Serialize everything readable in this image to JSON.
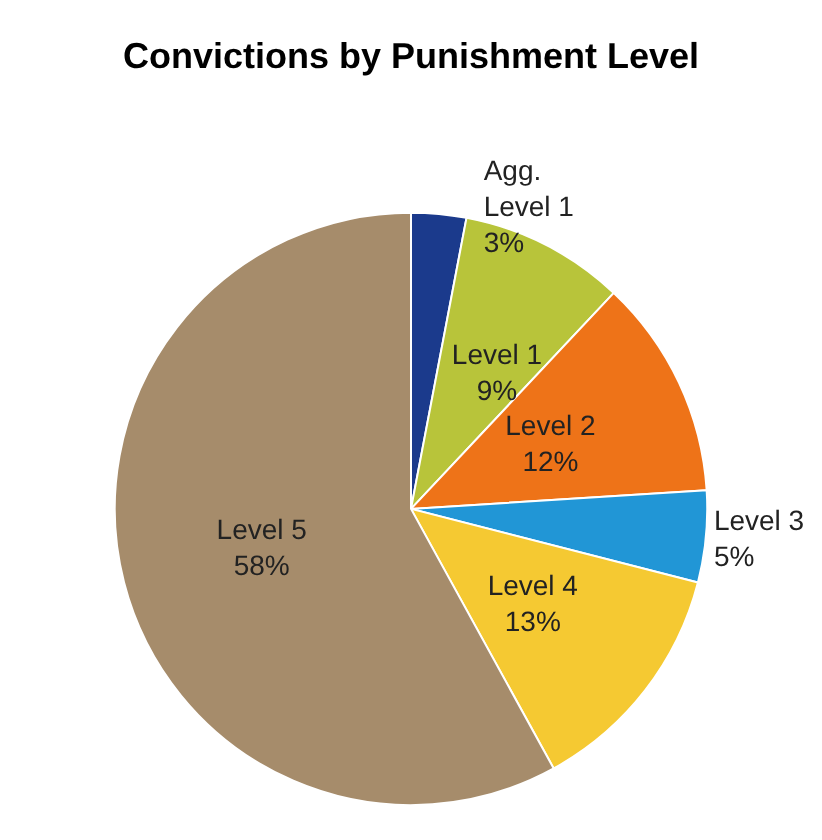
{
  "chart_data": {
    "type": "pie",
    "title": "Convictions by Punishment Level",
    "categories": [
      "Agg. Level 1",
      "Level 1",
      "Level 2",
      "Level 3",
      "Level 4",
      "Level 5"
    ],
    "values": [
      3,
      9,
      12,
      5,
      13,
      58
    ],
    "colors": [
      "#1b3a8c",
      "#b8c43a",
      "#ee7318",
      "#2196d6",
      "#f5c932",
      "#a68c6b"
    ],
    "value_labels": [
      "3%",
      "9%",
      "12%",
      "5%",
      "13%",
      "58%"
    ],
    "legend": false
  }
}
